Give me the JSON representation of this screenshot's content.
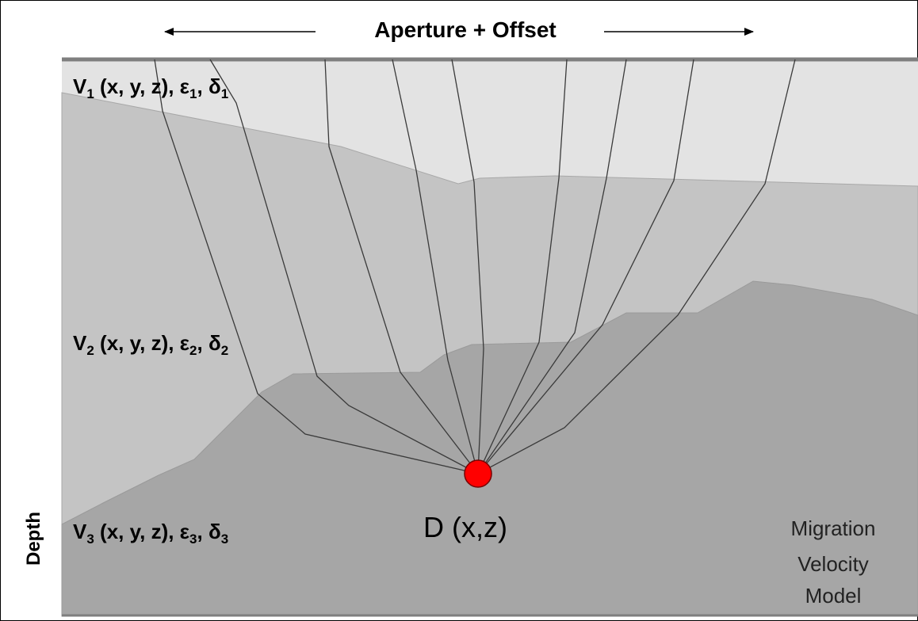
{
  "header": {
    "title": "Aperture + Offset"
  },
  "layers": [
    {
      "parts": [
        "V",
        "1",
        " (x, y, z), ε",
        "1",
        ", δ",
        "1"
      ]
    },
    {
      "parts": [
        "V",
        "2",
        " (x, y, z), ε",
        "2",
        ", δ",
        "2"
      ]
    },
    {
      "parts": [
        "V",
        "3",
        " (x, y, z), ε",
        "3",
        ", δ",
        "3"
      ]
    }
  ],
  "point": {
    "label": "D (x,z)"
  },
  "model": {
    "lines": [
      "Migration",
      "Velocity",
      "Model"
    ]
  },
  "axis": {
    "label": "Depth"
  }
}
